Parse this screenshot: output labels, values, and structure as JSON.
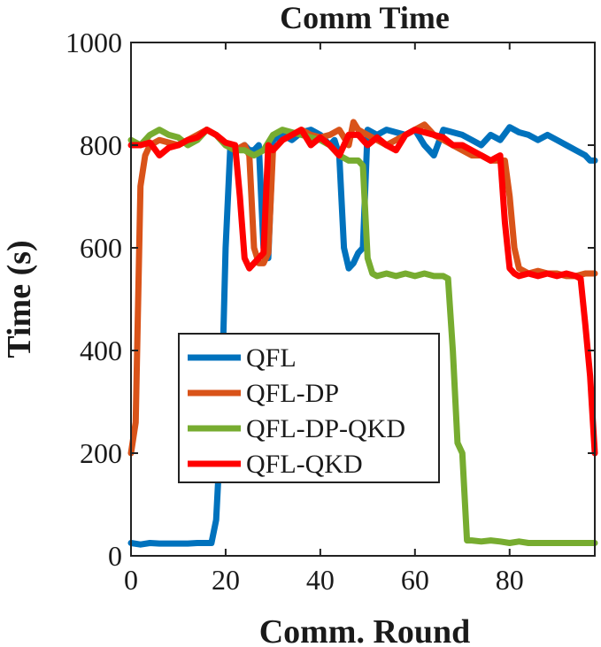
{
  "chart_data": {
    "type": "line",
    "title": "Comm Time",
    "xlabel": "Comm. Round",
    "ylabel": "Time (s)",
    "xlim": [
      0,
      98
    ],
    "ylim": [
      0,
      1000
    ],
    "xticks": [
      0,
      20,
      40,
      60,
      80
    ],
    "yticks": [
      0,
      200,
      400,
      600,
      800,
      1000
    ],
    "grid": false,
    "legend_position": "lower-left",
    "series": [
      {
        "name": "QFL",
        "color": "#0072BD",
        "x": [
          0,
          2,
          4,
          6,
          8,
          10,
          12,
          14,
          16,
          17,
          18,
          19,
          20,
          21,
          22,
          23,
          24,
          25,
          26,
          27,
          28,
          29,
          30,
          32,
          34,
          36,
          38,
          40,
          42,
          43,
          44,
          45,
          46,
          47,
          48,
          49,
          50,
          52,
          54,
          56,
          58,
          60,
          62,
          64,
          66,
          68,
          70,
          72,
          74,
          76,
          78,
          80,
          82,
          84,
          86,
          88,
          90,
          92,
          94,
          96,
          97,
          98
        ],
        "y": [
          25,
          22,
          25,
          24,
          24,
          24,
          24,
          25,
          25,
          25,
          70,
          250,
          600,
          800,
          790,
          795,
          800,
          790,
          790,
          800,
          600,
          580,
          810,
          820,
          810,
          825,
          830,
          820,
          800,
          810,
          780,
          600,
          560,
          570,
          590,
          600,
          830,
          820,
          830,
          825,
          820,
          830,
          800,
          780,
          830,
          825,
          820,
          810,
          800,
          820,
          810,
          835,
          825,
          820,
          810,
          820,
          810,
          800,
          790,
          780,
          770,
          770
        ]
      },
      {
        "name": "QFL-DP",
        "color": "#D95319",
        "x": [
          0,
          1,
          2,
          3,
          4,
          6,
          8,
          10,
          12,
          14,
          16,
          18,
          20,
          22,
          24,
          25,
          26,
          27,
          28,
          29,
          30,
          31,
          32,
          34,
          36,
          38,
          40,
          42,
          44,
          46,
          47,
          48,
          50,
          52,
          54,
          56,
          58,
          60,
          62,
          64,
          66,
          68,
          70,
          72,
          74,
          76,
          78,
          79,
          80,
          81,
          82,
          84,
          86,
          88,
          90,
          92,
          94,
          96,
          98
        ],
        "y": [
          200,
          260,
          720,
          780,
          800,
          810,
          805,
          800,
          810,
          820,
          830,
          820,
          800,
          790,
          800,
          780,
          600,
          570,
          570,
          590,
          790,
          800,
          810,
          820,
          830,
          820,
          815,
          820,
          830,
          800,
          845,
          830,
          820,
          810,
          800,
          810,
          820,
          830,
          840,
          820,
          810,
          800,
          790,
          780,
          780,
          770,
          770,
          770,
          700,
          600,
          560,
          550,
          555,
          550,
          550,
          545,
          545,
          550,
          550
        ]
      },
      {
        "name": "QFL-DP-QKD",
        "color": "#77AC30",
        "x": [
          0,
          2,
          4,
          6,
          8,
          10,
          12,
          14,
          16,
          18,
          20,
          22,
          24,
          26,
          28,
          30,
          32,
          34,
          36,
          38,
          40,
          42,
          44,
          46,
          48,
          49,
          50,
          51,
          52,
          54,
          56,
          58,
          60,
          62,
          64,
          66,
          67,
          68,
          69,
          70,
          71,
          72,
          74,
          76,
          78,
          80,
          82,
          84,
          86,
          88,
          90,
          92,
          94,
          96,
          98
        ],
        "y": [
          810,
          800,
          820,
          830,
          820,
          815,
          800,
          810,
          830,
          820,
          800,
          790,
          790,
          780,
          790,
          820,
          830,
          825,
          820,
          815,
          810,
          800,
          780,
          770,
          770,
          760,
          580,
          550,
          545,
          550,
          545,
          550,
          545,
          550,
          545,
          545,
          540,
          400,
          220,
          200,
          30,
          30,
          28,
          30,
          28,
          25,
          28,
          25,
          25,
          25,
          25,
          25,
          25,
          25,
          25
        ]
      },
      {
        "name": "QFL-QKD",
        "color": "#FF0000",
        "x": [
          0,
          2,
          4,
          6,
          8,
          10,
          12,
          14,
          16,
          18,
          20,
          22,
          23,
          24,
          25,
          26,
          27,
          28,
          29,
          30,
          32,
          34,
          36,
          38,
          40,
          42,
          44,
          46,
          48,
          50,
          52,
          54,
          56,
          58,
          60,
          62,
          64,
          66,
          68,
          70,
          72,
          74,
          76,
          77,
          78,
          79,
          80,
          81,
          82,
          84,
          86,
          88,
          90,
          92,
          94,
          95,
          96,
          97,
          98
        ],
        "y": [
          800,
          800,
          805,
          780,
          795,
          800,
          810,
          815,
          830,
          820,
          805,
          800,
          700,
          580,
          560,
          570,
          580,
          590,
          800,
          790,
          810,
          820,
          830,
          800,
          815,
          800,
          780,
          820,
          820,
          800,
          815,
          800,
          790,
          820,
          830,
          825,
          820,
          815,
          800,
          800,
          790,
          780,
          770,
          775,
          780,
          650,
          560,
          550,
          545,
          550,
          545,
          550,
          545,
          550,
          545,
          540,
          450,
          350,
          200
        ]
      }
    ]
  }
}
